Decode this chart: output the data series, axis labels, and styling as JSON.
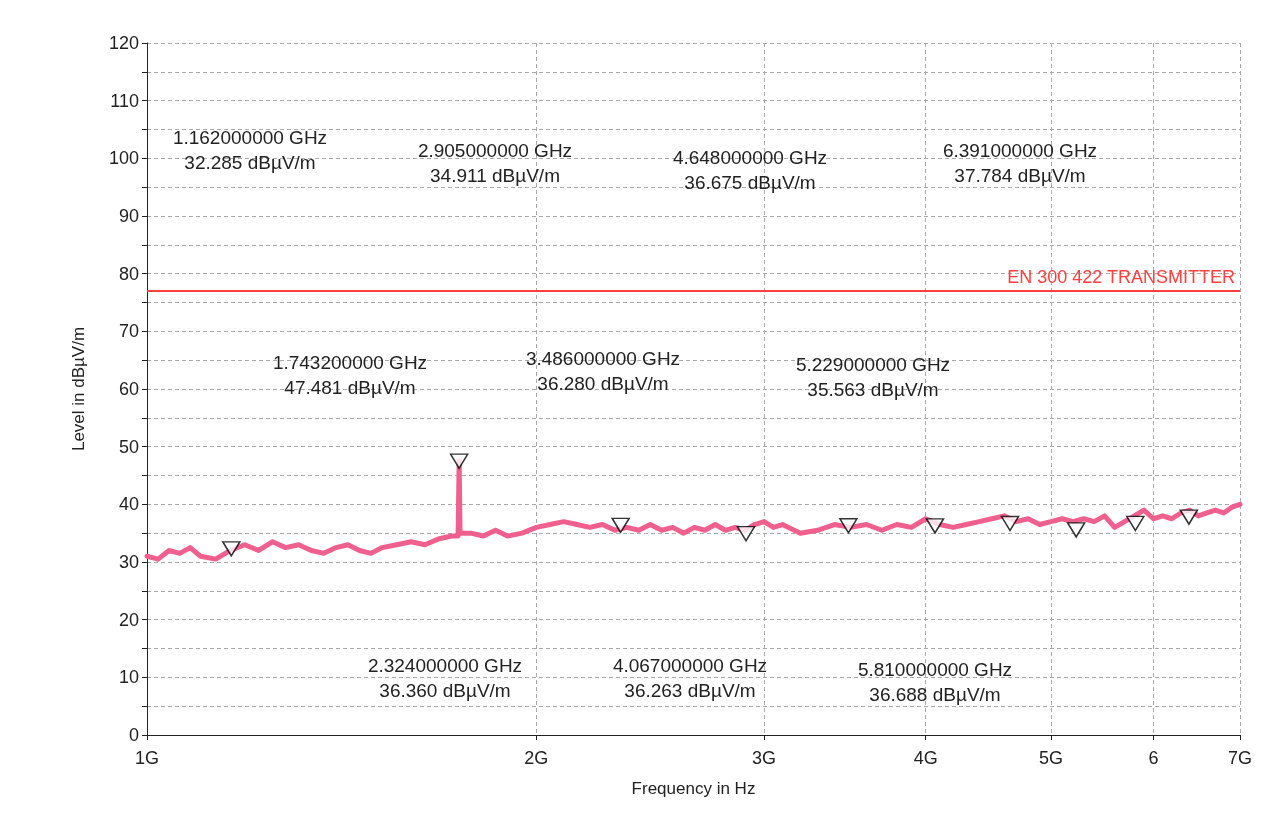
{
  "chart_data": {
    "type": "line",
    "xlabel": "Frequency in Hz",
    "ylabel": "Level in dBµV/m",
    "log": "x",
    "grid": true,
    "line_style": "solid",
    "xlim": [
      1,
      7
    ],
    "xticks": [
      {
        "value": 1,
        "label": "1G"
      },
      {
        "value": 2,
        "label": "2G"
      },
      {
        "value": 3,
        "label": "3G"
      },
      {
        "value": 4,
        "label": "4G"
      },
      {
        "value": 5,
        "label": "5G"
      },
      6,
      {
        "value": 7,
        "label": "7G"
      }
    ],
    "ylim": [
      0,
      120
    ],
    "yticks": [
      0,
      {
        "value": 5,
        "label": null
      },
      10,
      {
        "value": 15,
        "label": null
      },
      20,
      {
        "value": 25,
        "label": null
      },
      30,
      {
        "value": 35,
        "label": null
      },
      40,
      {
        "value": 45,
        "label": null
      },
      50,
      {
        "value": 55,
        "label": null
      },
      60,
      {
        "value": 65,
        "label": null
      },
      70,
      {
        "value": 75,
        "label": null
      },
      80,
      {
        "value": 85,
        "label": null
      },
      90,
      {
        "value": 95,
        "label": null
      },
      100,
      {
        "value": 105,
        "label": null
      },
      110,
      {
        "value": 115,
        "label": null
      },
      120
    ],
    "ref_lines": [
      {
        "axis": "y",
        "value": 77,
        "label": "EN 300 422 TRANSMITTER",
        "color": "#ff4040"
      }
    ],
    "series": [
      {
        "color": "#f0608f",
        "marker": "none",
        "x": [
          1.0,
          1.02,
          1.04,
          1.06,
          1.08,
          1.1,
          1.13,
          1.16,
          1.19,
          1.22,
          1.25,
          1.28,
          1.31,
          1.34,
          1.37,
          1.4,
          1.43,
          1.46,
          1.49,
          1.52,
          1.56,
          1.6,
          1.64,
          1.68,
          1.72,
          1.74,
          1.7432,
          1.746,
          1.78,
          1.82,
          1.86,
          1.9,
          1.95,
          2.0,
          2.05,
          2.1,
          2.15,
          2.2,
          2.25,
          2.3,
          2.35,
          2.4,
          2.45,
          2.5,
          2.55,
          2.6,
          2.65,
          2.7,
          2.75,
          2.8,
          2.85,
          2.9,
          2.95,
          3.0,
          3.05,
          3.1,
          3.2,
          3.3,
          3.4,
          3.5,
          3.6,
          3.7,
          3.8,
          3.9,
          4.0,
          4.1,
          4.2,
          4.3,
          4.4,
          4.5,
          4.6,
          4.7,
          4.8,
          4.9,
          5.0,
          5.1,
          5.2,
          5.3,
          5.4,
          5.5,
          5.6,
          5.7,
          5.8,
          5.9,
          6.0,
          6.1,
          6.2,
          6.3,
          6.4,
          6.5,
          6.6,
          6.7,
          6.8,
          6.9,
          7.0
        ],
        "values": [
          31,
          30.5,
          32,
          31.5,
          32.5,
          31,
          30.5,
          32,
          33,
          32,
          33.5,
          32.5,
          33,
          32,
          31.5,
          32.5,
          33,
          32,
          31.5,
          32.5,
          33,
          33.5,
          33,
          34,
          34.5,
          34.5,
          47.5,
          35,
          35,
          34.5,
          35.5,
          34.5,
          35,
          36,
          36.5,
          37,
          36.5,
          36,
          36.5,
          35.5,
          36,
          35.5,
          36.5,
          35.5,
          36,
          35,
          36,
          35.5,
          36.5,
          35.5,
          36,
          35.5,
          36.5,
          37,
          36,
          36.5,
          35,
          35.5,
          36.5,
          36,
          36.5,
          35.5,
          36.5,
          36,
          37.5,
          36.5,
          36,
          36.5,
          37,
          37.5,
          38,
          37,
          37.5,
          36.5,
          37,
          37.5,
          37,
          37.5,
          37,
          38,
          36,
          37,
          38,
          39,
          37.5,
          38,
          37.5,
          38.5,
          39,
          38,
          38.5,
          39,
          38.5,
          39.5,
          40
        ]
      },
      {
        "type": "scatter",
        "marker": "triangle",
        "colors": [
          "#000000",
          "#000000",
          "#000000",
          "#000000",
          "#000000",
          "#000000",
          "#000000",
          "#000000",
          "#000000",
          "#000000"
        ],
        "x": [
          1.162,
          1.7432,
          2.324,
          2.905,
          3.486,
          4.067,
          4.648,
          5.229,
          5.81,
          6.391
        ],
        "values": [
          32.285,
          47.481,
          36.36,
          34.911,
          36.28,
          36.263,
          36.675,
          35.563,
          36.688,
          37.784
        ]
      }
    ],
    "annotations": [
      "1.162000000 GHz\n32.285 dBµV/m",
      "2.905000000 GHz\n34.911 dBµV/m",
      "4.648000000 GHz\n36.675 dBµV/m",
      "6.391000000 GHz\n37.784 dBµV/m",
      "1.743200000 GHz\n47.481 dBµV/m",
      "3.486000000 GHz\n36.280 dBµV/m",
      "5.229000000 GHz\n35.563 dBµV/m",
      "2.324000000 GHz\n36.360 dBµV/m",
      "4.067000000 GHz\n36.263 dBµV/m",
      "5.810000000 GHz\n36.688 dBµV/m"
    ]
  }
}
